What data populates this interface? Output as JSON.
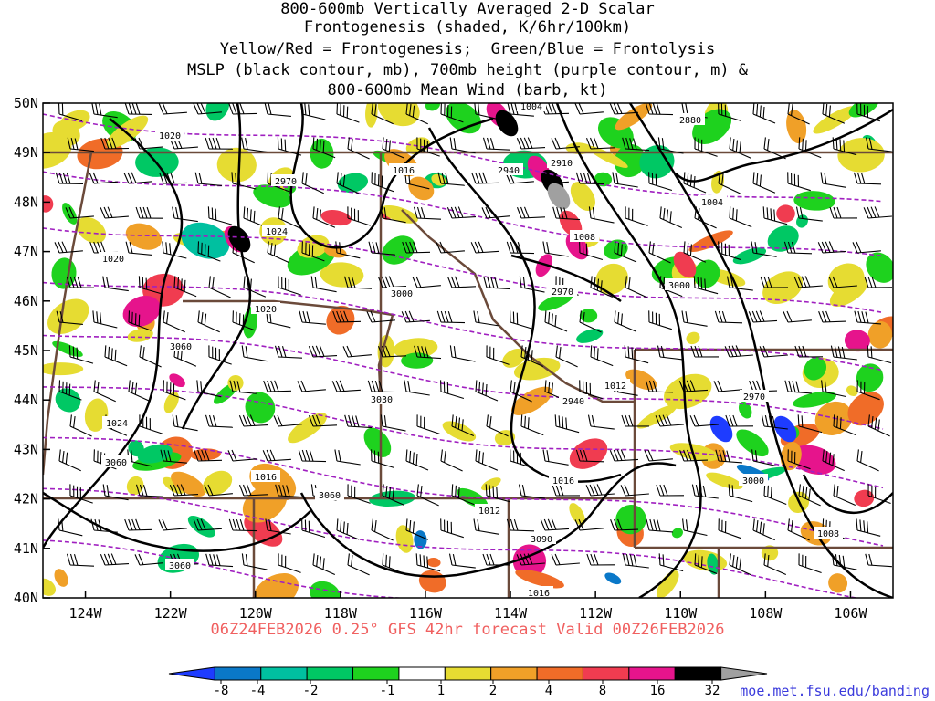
{
  "title_lines": [
    "800-600mb Vertically Averaged 2-D Scalar",
    "Frontogenesis (shaded, K/6hr/100km)",
    "Yellow/Red = Frontogenesis;  Green/Blue = Frontolysis",
    "MSLP (black contour, mb), 700mb height (purple contour, m) &",
    "800-600mb Mean Wind (barb, kt)"
  ],
  "valid_text": "06Z24FEB2026 0.25° GFS 42hr forecast Valid 00Z26FEB2026",
  "credit": "moe.met.fsu.edu/banding",
  "map": {
    "lon_range": [
      -125,
      -105
    ],
    "lat_range": [
      40,
      50
    ],
    "lat_labels": [
      "50N",
      "49N",
      "48N",
      "47N",
      "46N",
      "45N",
      "44N",
      "43N",
      "42N",
      "41N",
      "40N"
    ],
    "lon_labels": [
      "124W",
      "122W",
      "120W",
      "118W",
      "116W",
      "114W",
      "112W",
      "110W",
      "108W",
      "106W"
    ],
    "mslp_labels": [
      "1004",
      "1020",
      "1016",
      "1024",
      "1020",
      "1020",
      "1024",
      "1016",
      "1016",
      "1012",
      "1008",
      "1004",
      "1016",
      "1008",
      "1012"
    ],
    "height_labels": [
      "2880",
      "2910",
      "2940",
      "2970",
      "3000",
      "2970",
      "3060",
      "3030",
      "3060",
      "3060",
      "3090",
      "3060",
      "3000",
      "2970",
      "2940",
      "3000"
    ],
    "colors": {
      "mslp": "#000000",
      "height": "#a020c0",
      "borders": "#6b4a3a",
      "barbs": "#000000"
    }
  },
  "colorbar": {
    "labels": [
      "-8",
      "-4",
      "-2",
      "-1",
      "1",
      "2",
      "4",
      "8",
      "16",
      "32"
    ],
    "colors": [
      "#1e3cff",
      "#0a78c8",
      "#00c0a0",
      "#00c864",
      "#1ed21e",
      "#ffffff",
      "#e6dc32",
      "#f0a028",
      "#f06c28",
      "#f03c50",
      "#e6148c",
      "#000000",
      "#a0a0a0"
    ]
  }
}
